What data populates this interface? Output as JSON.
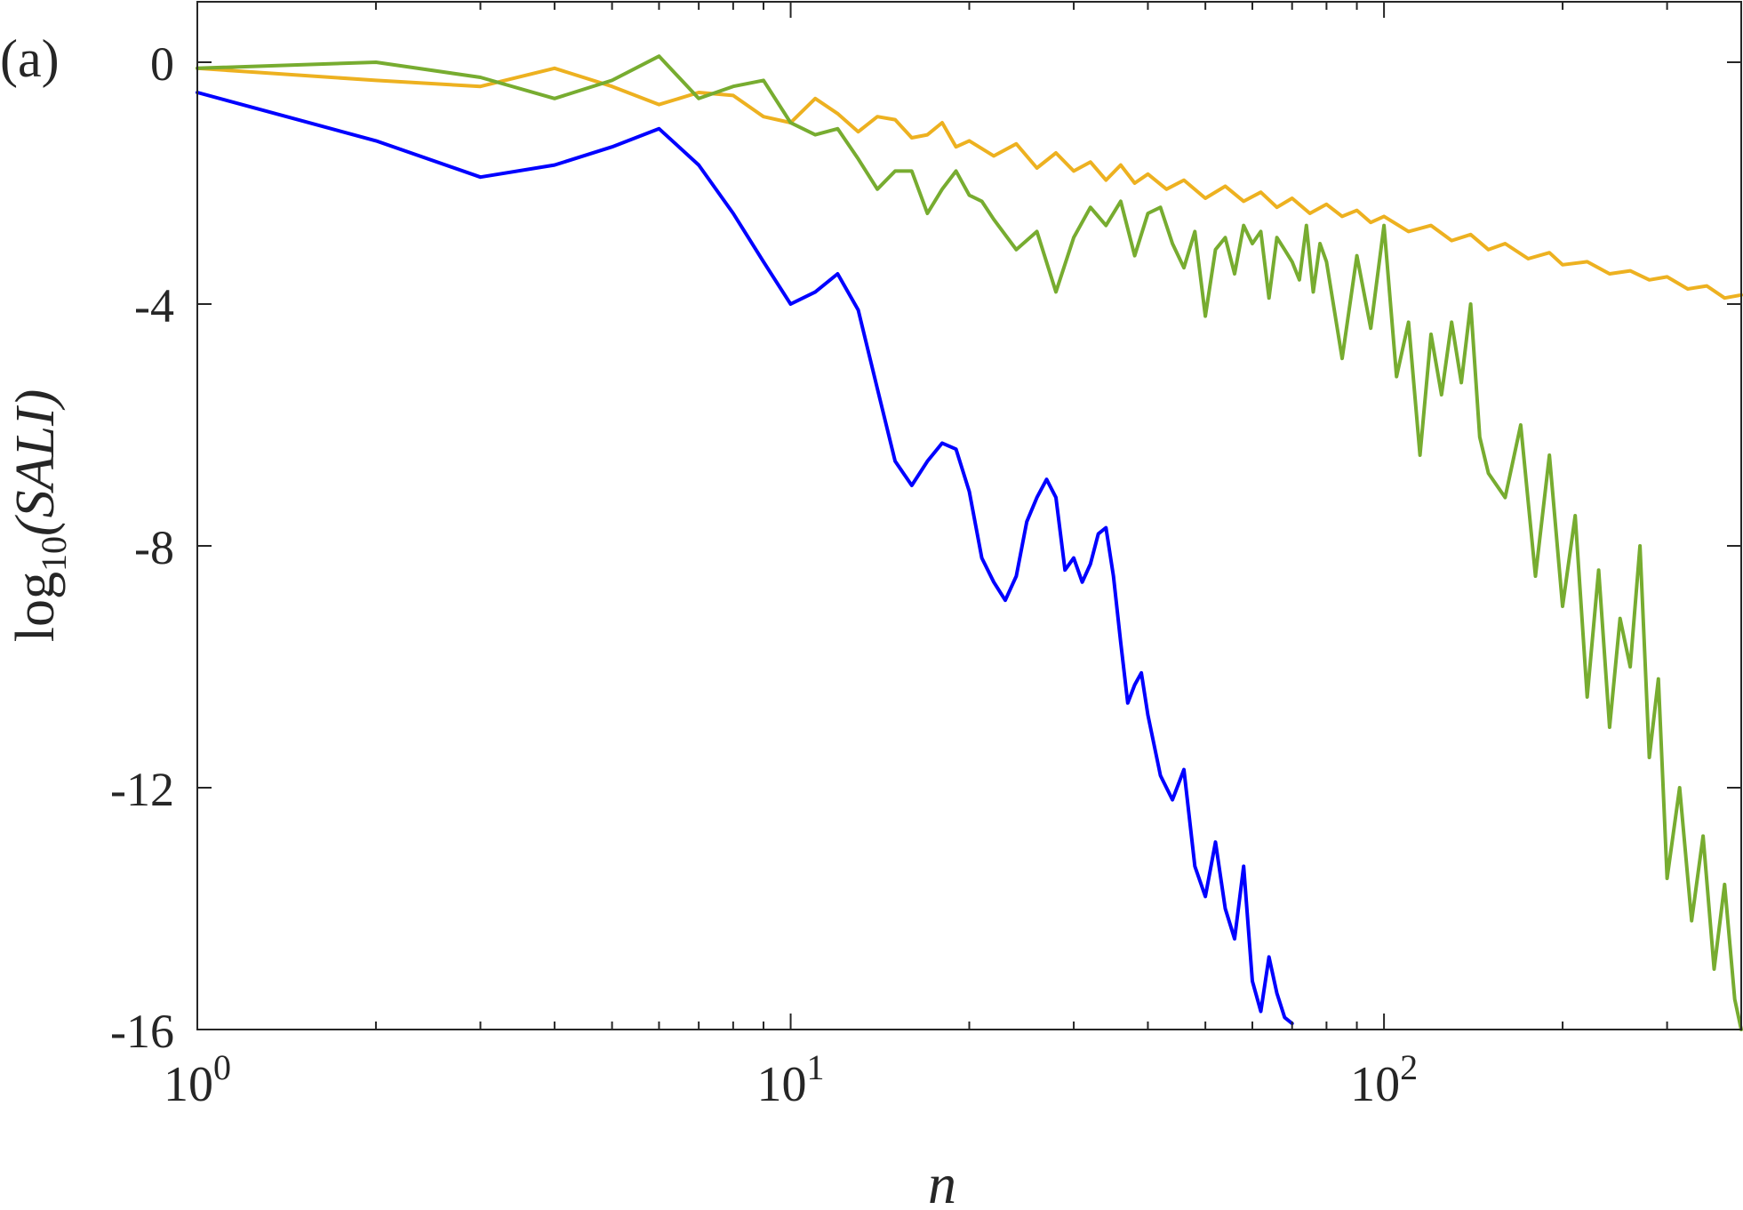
{
  "chart_data": {
    "type": "line",
    "panel_label": "(a)",
    "xlabel": "n",
    "ylabel_base": "log",
    "ylabel_sub": "10",
    "ylabel_arg": "(SALI)",
    "x_scale": "log",
    "xlim": [
      1,
      400
    ],
    "ylim": [
      -16,
      1
    ],
    "x_ticks": [
      {
        "value": 1,
        "base": "10",
        "exp": "0"
      },
      {
        "value": 10,
        "base": "10",
        "exp": "1"
      },
      {
        "value": 100,
        "base": "10",
        "exp": "2"
      }
    ],
    "y_ticks": [
      {
        "value": 0,
        "label": "0"
      },
      {
        "value": -4,
        "label": "-4"
      },
      {
        "value": -8,
        "label": "-8"
      },
      {
        "value": -12,
        "label": "-12"
      },
      {
        "value": -16,
        "label": "-16"
      }
    ],
    "grid": false,
    "legend": "none",
    "series": [
      {
        "color": "#EDB120",
        "x": [
          1,
          2,
          3,
          4,
          5,
          6,
          7,
          8,
          9,
          10,
          11,
          12,
          13,
          14,
          15,
          16,
          17,
          18,
          19,
          20,
          22,
          24,
          26,
          28,
          30,
          32,
          34,
          36,
          38,
          40,
          43,
          46,
          50,
          54,
          58,
          62,
          66,
          70,
          75,
          80,
          85,
          90,
          95,
          100,
          110,
          120,
          130,
          140,
          150,
          160,
          175,
          190,
          200,
          220,
          240,
          260,
          280,
          300,
          325,
          350,
          375,
          400
        ],
        "y": [
          -0.1,
          -0.3,
          -0.4,
          -0.1,
          -0.4,
          -0.7,
          -0.5,
          -0.55,
          -0.9,
          -1.0,
          -0.6,
          -0.85,
          -1.15,
          -0.9,
          -0.95,
          -1.25,
          -1.2,
          -1.0,
          -1.4,
          -1.3,
          -1.55,
          -1.35,
          -1.75,
          -1.5,
          -1.8,
          -1.65,
          -1.95,
          -1.7,
          -2.0,
          -1.85,
          -2.1,
          -1.95,
          -2.25,
          -2.05,
          -2.3,
          -2.15,
          -2.4,
          -2.25,
          -2.5,
          -2.35,
          -2.55,
          -2.45,
          -2.65,
          -2.55,
          -2.8,
          -2.7,
          -2.95,
          -2.85,
          -3.1,
          -3.0,
          -3.25,
          -3.15,
          -3.35,
          -3.3,
          -3.5,
          -3.45,
          -3.6,
          -3.55,
          -3.75,
          -3.7,
          -3.9,
          -3.85
        ]
      },
      {
        "color": "#77AC30",
        "x": [
          1,
          2,
          3,
          4,
          5,
          6,
          7,
          8,
          9,
          10,
          11,
          12,
          13,
          14,
          15,
          16,
          17,
          18,
          19,
          20,
          21,
          22,
          24,
          26,
          28,
          30,
          32,
          34,
          36,
          38,
          40,
          42,
          44,
          46,
          48,
          50,
          52,
          54,
          56,
          58,
          60,
          62,
          64,
          66,
          68,
          70,
          72,
          74,
          76,
          78,
          80,
          85,
          90,
          95,
          100,
          105,
          110,
          115,
          120,
          125,
          130,
          135,
          140,
          145,
          150,
          160,
          170,
          180,
          190,
          200,
          210,
          220,
          230,
          240,
          250,
          260,
          270,
          280,
          290,
          300,
          315,
          330,
          345,
          360,
          375,
          390,
          400
        ],
        "y": [
          -0.1,
          0.0,
          -0.25,
          -0.6,
          -0.3,
          0.1,
          -0.6,
          -0.4,
          -0.3,
          -1.0,
          -1.2,
          -1.1,
          -1.6,
          -2.1,
          -1.8,
          -1.8,
          -2.5,
          -2.1,
          -1.8,
          -2.2,
          -2.3,
          -2.6,
          -3.1,
          -2.8,
          -3.8,
          -2.9,
          -2.4,
          -2.7,
          -2.3,
          -3.2,
          -2.5,
          -2.4,
          -3.0,
          -3.4,
          -2.8,
          -4.2,
          -3.1,
          -2.9,
          -3.5,
          -2.7,
          -3.0,
          -2.8,
          -3.9,
          -2.9,
          -3.1,
          -3.3,
          -3.6,
          -2.7,
          -3.8,
          -3.0,
          -3.3,
          -4.9,
          -3.2,
          -4.4,
          -2.7,
          -5.2,
          -4.3,
          -6.5,
          -4.5,
          -5.5,
          -4.3,
          -5.3,
          -4.0,
          -6.2,
          -6.8,
          -7.2,
          -6.0,
          -8.5,
          -6.5,
          -9.0,
          -7.5,
          -10.5,
          -8.4,
          -11.0,
          -9.2,
          -10.0,
          -8.0,
          -11.5,
          -10.2,
          -13.5,
          -12.0,
          -14.2,
          -12.8,
          -15.0,
          -13.6,
          -15.5,
          -16.0
        ]
      },
      {
        "color": "#0000FF",
        "x": [
          1,
          2,
          3,
          4,
          5,
          6,
          7,
          8,
          9,
          10,
          11,
          12,
          13,
          14,
          15,
          16,
          17,
          18,
          19,
          20,
          21,
          22,
          23,
          24,
          25,
          26,
          27,
          28,
          29,
          30,
          31,
          32,
          33,
          34,
          35,
          36,
          37,
          38,
          39,
          40,
          42,
          44,
          46,
          48,
          50,
          52,
          54,
          56,
          58,
          60,
          62,
          64,
          66,
          68,
          70
        ],
        "y": [
          -0.5,
          -1.3,
          -1.9,
          -1.7,
          -1.4,
          -1.1,
          -1.7,
          -2.5,
          -3.3,
          -4.0,
          -3.8,
          -3.5,
          -4.1,
          -5.4,
          -6.6,
          -7.0,
          -6.6,
          -6.3,
          -6.4,
          -7.1,
          -8.2,
          -8.6,
          -8.9,
          -8.5,
          -7.6,
          -7.2,
          -6.9,
          -7.2,
          -8.4,
          -8.2,
          -8.6,
          -8.3,
          -7.8,
          -7.7,
          -8.5,
          -9.6,
          -10.6,
          -10.3,
          -10.1,
          -10.8,
          -11.8,
          -12.2,
          -11.7,
          -13.3,
          -13.8,
          -12.9,
          -14.0,
          -14.5,
          -13.3,
          -15.2,
          -15.7,
          -14.8,
          -15.4,
          -15.8,
          -15.9
        ]
      }
    ]
  }
}
